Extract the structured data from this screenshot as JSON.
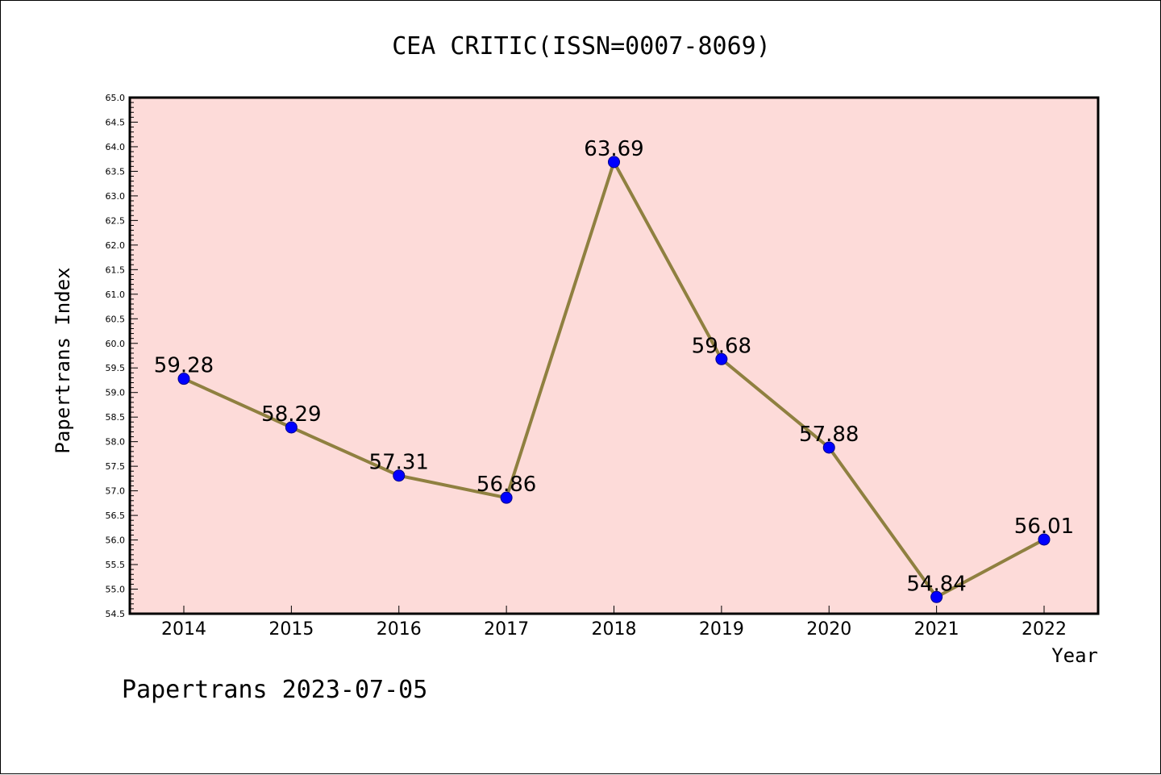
{
  "chart_data": {
    "type": "line",
    "title": "CEA CRITIC(ISSN=0007-8069)",
    "xlabel": "Year",
    "ylabel": "Papertrans Index",
    "categories": [
      "2014",
      "2015",
      "2016",
      "2017",
      "2018",
      "2019",
      "2020",
      "2021",
      "2022"
    ],
    "values": [
      59.28,
      58.29,
      57.31,
      56.86,
      63.69,
      59.68,
      57.88,
      54.84,
      56.01
    ],
    "data_labels": [
      "59.28",
      "58.29",
      "57.31",
      "56.86",
      "63.69",
      "59.68",
      "57.88",
      "54.84",
      "56.01"
    ],
    "ylim": [
      54.5,
      65.0
    ],
    "ytick_step": 0.5,
    "grid": false,
    "plot_background": "#fddbd9",
    "line_color": "#8f8040",
    "marker_color": "#0000ff"
  },
  "footer": "Papertrans 2023-07-05"
}
